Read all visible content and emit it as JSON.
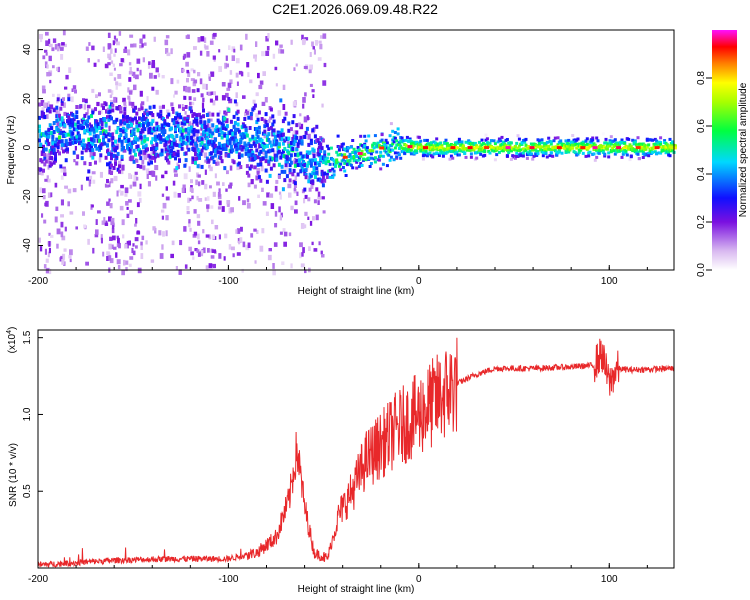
{
  "title": "C2E1.2026.069.09.48.R22",
  "colors": {
    "snr_line": "#e8282a",
    "frame": "#000000",
    "background": "#ffffff"
  },
  "chart_data": [
    {
      "type": "heatmap",
      "name": "spectrogram",
      "xlabel": "Height of straight line (km)",
      "ylabel": "Frequency (Hz)",
      "xlim": [
        -200,
        134
      ],
      "ylim": [
        -50,
        48
      ],
      "xticks": [
        -200,
        -100,
        0,
        100
      ],
      "yticks": [
        -40,
        -20,
        0,
        20,
        40
      ],
      "colorbar": {
        "label": "Normalized spectral amplitude",
        "range": [
          0.0,
          1.0
        ],
        "ticks": [
          "0.0",
          "0.2",
          "0.4",
          "0.6",
          "0.8"
        ],
        "colormap": [
          "#ffffff",
          "#8a2be2",
          "#0000ff",
          "#00ffff",
          "#00ff00",
          "#ffff00",
          "#ff8000",
          "#ff0000",
          "#ff00ff"
        ]
      },
      "band_center_hz": [
        {
          "x": -200,
          "y": 6
        },
        {
          "x": -150,
          "y": 5
        },
        {
          "x": -100,
          "y": 5
        },
        {
          "x": -80,
          "y": 1
        },
        {
          "x": -65,
          "y": -3
        },
        {
          "x": -55,
          "y": -6
        },
        {
          "x": -45,
          "y": -5
        },
        {
          "x": -30,
          "y": -2
        },
        {
          "x": -15,
          "y": 1
        },
        {
          "x": 0,
          "y": 0
        },
        {
          "x": 50,
          "y": 0
        },
        {
          "x": 100,
          "y": 0
        },
        {
          "x": 134,
          "y": 0
        }
      ]
    },
    {
      "type": "line",
      "name": "snr",
      "xlabel": "Height of straight line (km)",
      "ylabel": "SNR (10 * v/v)",
      "y_multiplier": "(x10",
      "y_multiplier_exp": "4",
      "y_multiplier_close": ")",
      "xlim": [
        -200,
        134
      ],
      "ylim": [
        0,
        1.55
      ],
      "xticks": [
        -200,
        -100,
        0,
        100
      ],
      "yticks": [
        "0.5",
        "1.0",
        "1.5"
      ],
      "x": [
        -200,
        -160,
        -130,
        -100,
        -85,
        -75,
        -68,
        -64,
        -60,
        -55,
        -48,
        -42,
        -35,
        -28,
        -20,
        -12,
        -6,
        0,
        10,
        20,
        30,
        40,
        60,
        80,
        92,
        96,
        100,
        104,
        110,
        134
      ],
      "y": [
        0.02,
        0.05,
        0.06,
        0.06,
        0.1,
        0.2,
        0.45,
        0.78,
        0.4,
        0.1,
        0.06,
        0.35,
        0.5,
        0.7,
        0.8,
        0.9,
        0.95,
        1.0,
        1.1,
        1.2,
        1.26,
        1.3,
        1.3,
        1.31,
        1.32,
        1.4,
        1.2,
        1.3,
        1.29,
        1.3
      ]
    }
  ]
}
